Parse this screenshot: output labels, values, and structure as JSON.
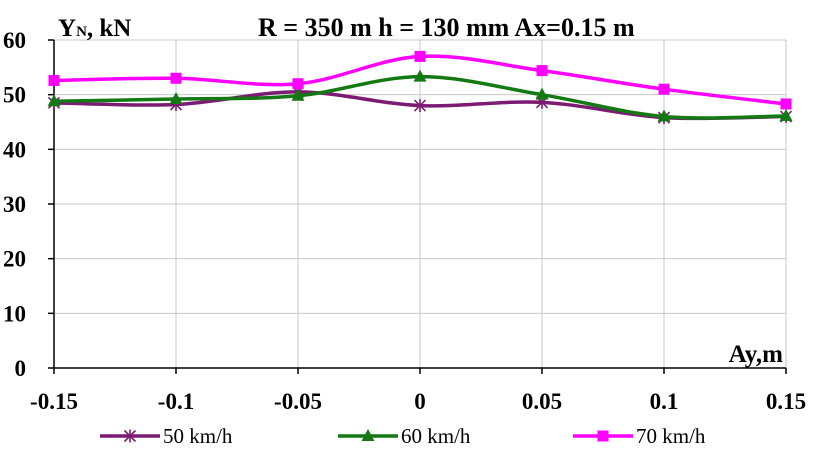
{
  "chart_data": {
    "type": "line",
    "title": "R = 350 m  h = 130 mm  Ax=0.15 m",
    "ylabel": {
      "main": "Y",
      "sub": "N",
      "rest": ", kN"
    },
    "xlabel": "Ay,m",
    "x": [
      -0.15,
      -0.1,
      -0.05,
      0,
      0.05,
      0.1,
      0.15
    ],
    "x_tick_labels": [
      "-0.15",
      "-0.1",
      "-0.05",
      "0",
      "0.05",
      "0.1",
      "0.15"
    ],
    "ylim": [
      0,
      60
    ],
    "y_ticks": [
      0,
      10,
      20,
      30,
      40,
      50,
      60
    ],
    "grid": true,
    "legend_position": "bottom",
    "series": [
      {
        "name": "50 km/h",
        "color": "#7b1b73",
        "marker": "star",
        "values": [
          48.5,
          48.2,
          50.5,
          48.0,
          48.6,
          45.8,
          46.0
        ]
      },
      {
        "name": "60 km/h",
        "color": "#137a13",
        "marker": "triangle",
        "values": [
          48.8,
          49.2,
          49.8,
          53.3,
          50.0,
          46.0,
          46.1
        ]
      },
      {
        "name": "70 km/h",
        "color": "#ff00ff",
        "marker": "square",
        "values": [
          52.6,
          53.0,
          52.0,
          57.0,
          54.4,
          51.0,
          48.3
        ]
      }
    ]
  }
}
